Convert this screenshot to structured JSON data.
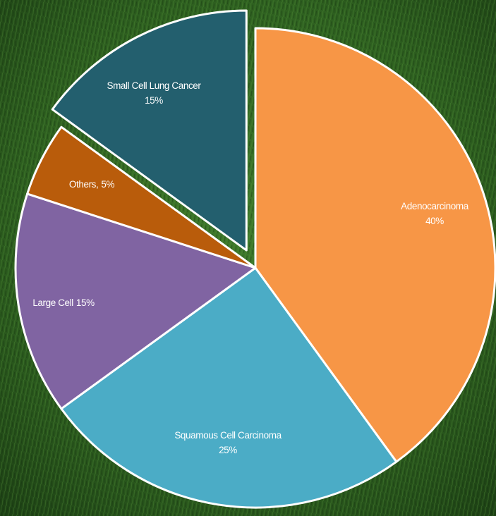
{
  "chart_data": {
    "type": "pie",
    "categories": [
      "Adenocarcinoma",
      "Squamous Cell Carcinoma",
      "Large Cell",
      "Others,",
      "Small Cell Lung Cancer"
    ],
    "values": [
      40,
      25,
      15,
      5,
      15
    ],
    "value_labels": [
      "40%",
      "25%",
      "15%",
      "5%",
      "15%"
    ],
    "colors": [
      "#f79646",
      "#4bacc6",
      "#8064a2",
      "#b95c0b",
      "#235f6e"
    ],
    "explode": [
      false,
      false,
      false,
      false,
      true
    ]
  }
}
